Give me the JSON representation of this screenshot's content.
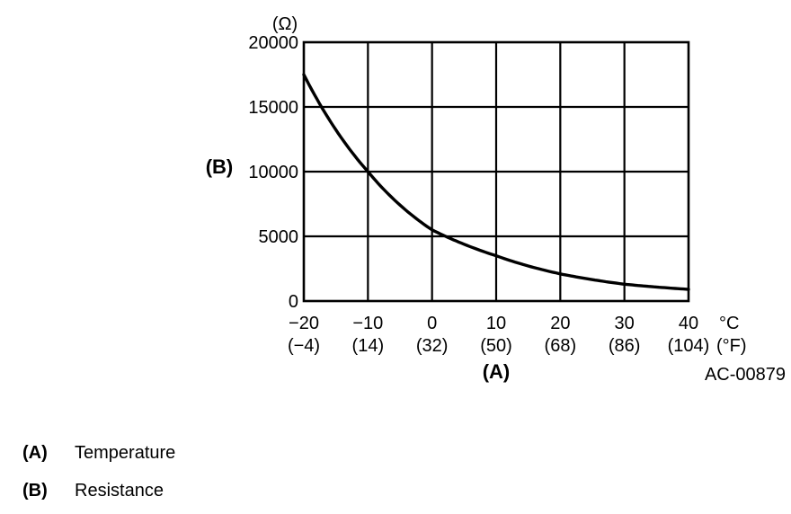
{
  "figure": {
    "code": "AC-00879",
    "y_unit_label": "(Ω)",
    "y_axis_marker": "(B)",
    "x_axis_marker": "(A)",
    "x_unit_celsius": "°C",
    "x_unit_fahrenheit": "(°F)"
  },
  "legend": {
    "items": [
      {
        "key": "(A)",
        "label": "Temperature"
      },
      {
        "key": "(B)",
        "label": "Resistance"
      }
    ]
  },
  "chart_data": {
    "type": "line",
    "title": "",
    "xlabel": "Temperature",
    "ylabel": "Resistance",
    "x_unit": "°C (°F)",
    "y_unit": "Ω",
    "x": [
      -20,
      -10,
      0,
      10,
      20,
      30,
      40
    ],
    "x_tick_labels_c": [
      "−20",
      "−10",
      "0",
      "10",
      "20",
      "30",
      "40"
    ],
    "x_tick_labels_f": [
      "(−4)",
      "(14)",
      "(32)",
      "(50)",
      "(68)",
      "(86)",
      "(104)"
    ],
    "y_ticks": [
      0,
      5000,
      10000,
      15000,
      20000
    ],
    "y_tick_labels": [
      "0",
      "5000",
      "10000",
      "15000",
      "20000"
    ],
    "series": [
      {
        "name": "Resistance",
        "values": [
          17500,
          10000,
          5500,
          3500,
          2100,
          1300,
          900
        ]
      }
    ],
    "xlim": [
      -20,
      40
    ],
    "ylim": [
      0,
      20000
    ],
    "grid": true,
    "line_color": "#000000",
    "legend_position": "below-left"
  }
}
